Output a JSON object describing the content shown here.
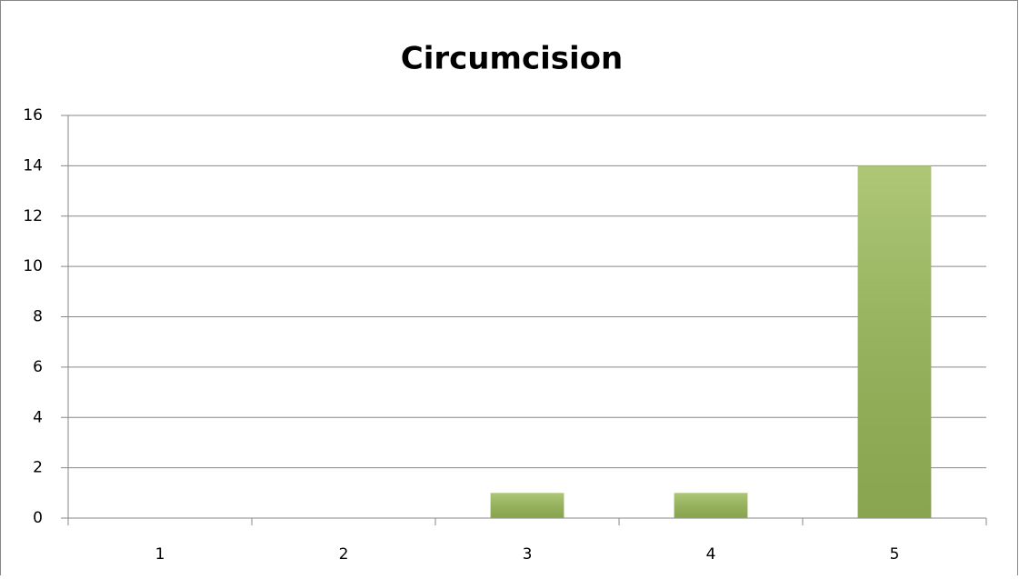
{
  "chart_data": {
    "type": "bar",
    "title": "Circumcision",
    "categories": [
      "1",
      "2",
      "3",
      "4",
      "5"
    ],
    "values": [
      0,
      0,
      1,
      1,
      14
    ],
    "color": "#9bbb59",
    "ylim": [
      0,
      16
    ],
    "yticks": [
      0,
      2,
      4,
      6,
      8,
      10,
      12,
      14,
      16
    ],
    "grid": true
  }
}
